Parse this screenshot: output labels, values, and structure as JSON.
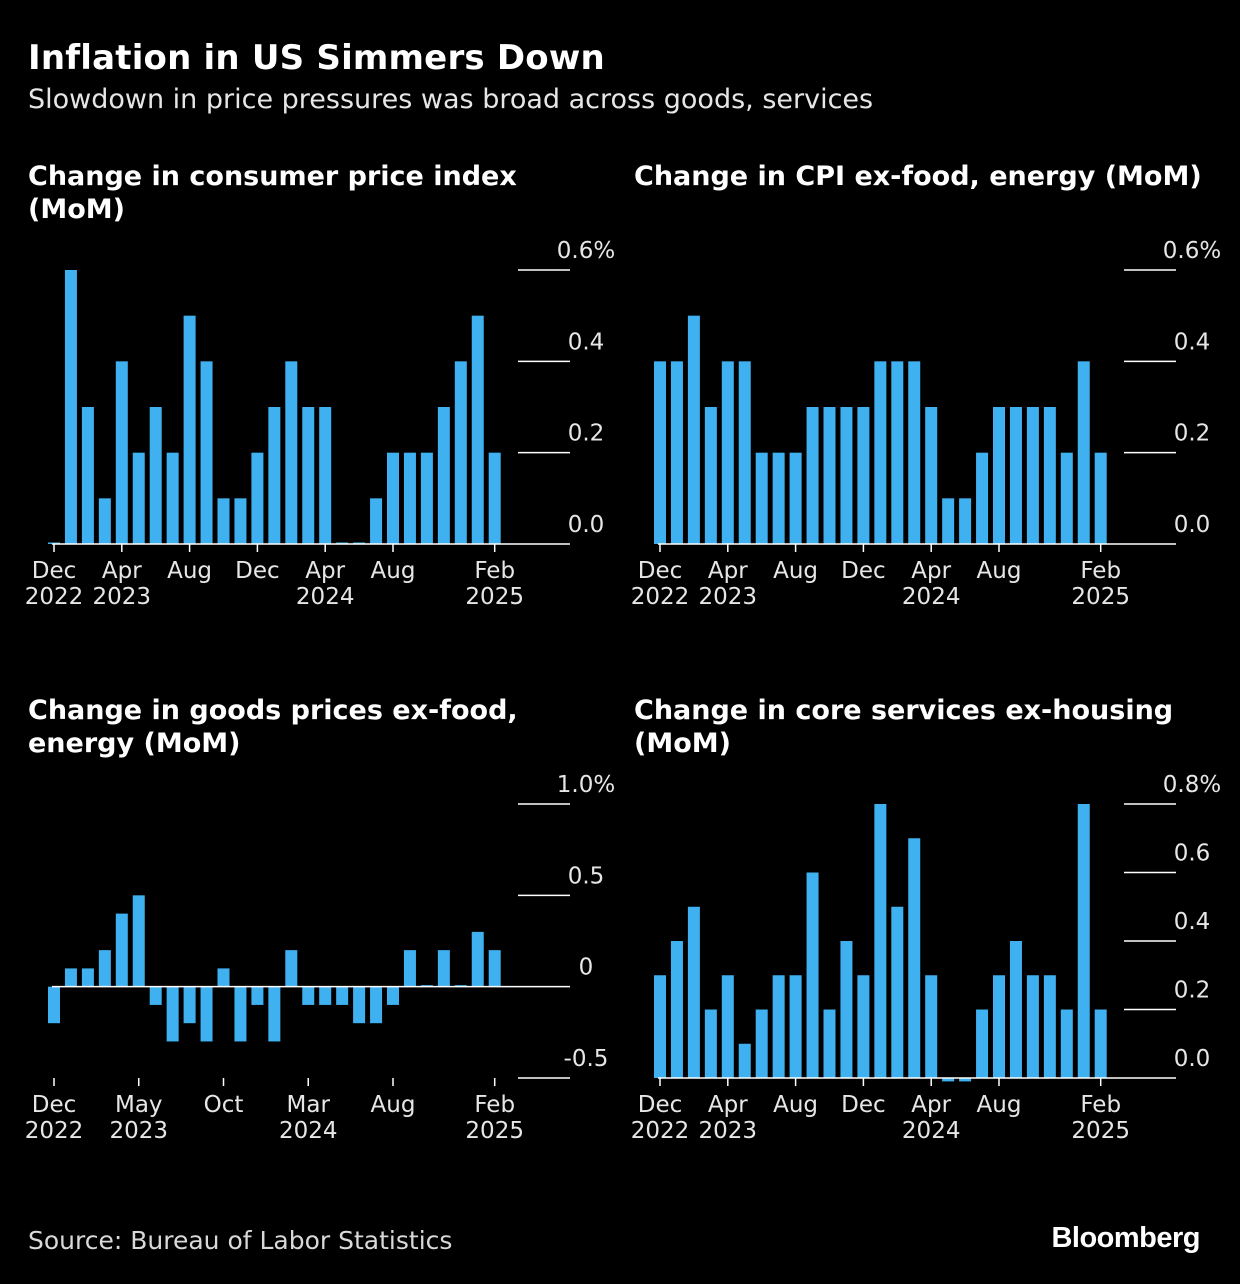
{
  "header": {
    "title": "Inflation in US Simmers Down",
    "subtitle": "Slowdown in price pressures was broad across goods, services"
  },
  "footer": {
    "source": "Source: Bureau of Labor Statistics",
    "logo": "Bloomberg"
  },
  "colors": {
    "bar": "#3fb0f0",
    "background": "#000000",
    "axis": "#ffffff",
    "text": "#ffffff"
  },
  "chart_data": [
    {
      "type": "bar",
      "title": "Change in consumer price index (MoM)",
      "x": [
        "2022-12",
        "2023-01",
        "2023-02",
        "2023-03",
        "2023-04",
        "2023-05",
        "2023-06",
        "2023-07",
        "2023-08",
        "2023-09",
        "2023-10",
        "2023-11",
        "2023-12",
        "2024-01",
        "2024-02",
        "2024-03",
        "2024-04",
        "2024-05",
        "2024-06",
        "2024-07",
        "2024-08",
        "2024-09",
        "2024-10",
        "2024-11",
        "2024-12",
        "2025-01",
        "2025-02"
      ],
      "values": [
        0.0,
        0.6,
        0.3,
        0.1,
        0.4,
        0.2,
        0.3,
        0.2,
        0.5,
        0.4,
        0.1,
        0.1,
        0.2,
        0.3,
        0.4,
        0.3,
        0.3,
        0.0,
        0.0,
        0.1,
        0.2,
        0.2,
        0.2,
        0.3,
        0.4,
        0.5,
        0.2
      ],
      "ylim": [
        0,
        0.6
      ],
      "yticks": [
        {
          "v": 0.6,
          "label": "0.6%"
        },
        {
          "v": 0.4,
          "label": "0.4"
        },
        {
          "v": 0.2,
          "label": "0.2"
        },
        {
          "v": 0.0,
          "label": "0.0"
        }
      ],
      "xticks": [
        {
          "i": 0,
          "l1": "Dec",
          "l2": "2022"
        },
        {
          "i": 4,
          "l1": "Apr",
          "l2": "2023"
        },
        {
          "i": 8,
          "l1": "Aug",
          "l2": ""
        },
        {
          "i": 12,
          "l1": "Dec",
          "l2": ""
        },
        {
          "i": 16,
          "l1": "Apr",
          "l2": "2024"
        },
        {
          "i": 20,
          "l1": "Aug",
          "l2": ""
        },
        {
          "i": 26,
          "l1": "Feb",
          "l2": "2025"
        }
      ],
      "grid": true,
      "legend": "none"
    },
    {
      "type": "bar",
      "title": "Change in CPI ex-food, energy (MoM)",
      "x": [
        "2022-12",
        "2023-01",
        "2023-02",
        "2023-03",
        "2023-04",
        "2023-05",
        "2023-06",
        "2023-07",
        "2023-08",
        "2023-09",
        "2023-10",
        "2023-11",
        "2023-12",
        "2024-01",
        "2024-02",
        "2024-03",
        "2024-04",
        "2024-05",
        "2024-06",
        "2024-07",
        "2024-08",
        "2024-09",
        "2024-10",
        "2024-11",
        "2024-12",
        "2025-01",
        "2025-02"
      ],
      "values": [
        0.4,
        0.4,
        0.5,
        0.3,
        0.4,
        0.4,
        0.2,
        0.2,
        0.2,
        0.3,
        0.3,
        0.3,
        0.3,
        0.4,
        0.4,
        0.4,
        0.3,
        0.1,
        0.1,
        0.2,
        0.3,
        0.3,
        0.3,
        0.3,
        0.2,
        0.4,
        0.2
      ],
      "ylim": [
        0,
        0.6
      ],
      "yticks": [
        {
          "v": 0.6,
          "label": "0.6%"
        },
        {
          "v": 0.4,
          "label": "0.4"
        },
        {
          "v": 0.2,
          "label": "0.2"
        },
        {
          "v": 0.0,
          "label": "0.0"
        }
      ],
      "xticks": [
        {
          "i": 0,
          "l1": "Dec",
          "l2": "2022"
        },
        {
          "i": 4,
          "l1": "Apr",
          "l2": "2023"
        },
        {
          "i": 8,
          "l1": "Aug",
          "l2": ""
        },
        {
          "i": 12,
          "l1": "Dec",
          "l2": ""
        },
        {
          "i": 16,
          "l1": "Apr",
          "l2": "2024"
        },
        {
          "i": 20,
          "l1": "Aug",
          "l2": ""
        },
        {
          "i": 26,
          "l1": "Feb",
          "l2": "2025"
        }
      ],
      "grid": true,
      "legend": "none"
    },
    {
      "type": "bar",
      "title": "Change in goods prices ex-food, energy (MoM)",
      "x": [
        "2022-12",
        "2023-01",
        "2023-02",
        "2023-03",
        "2023-04",
        "2023-05",
        "2023-06",
        "2023-07",
        "2023-08",
        "2023-09",
        "2023-10",
        "2023-11",
        "2023-12",
        "2024-01",
        "2024-02",
        "2024-03",
        "2024-04",
        "2024-05",
        "2024-06",
        "2024-07",
        "2024-08",
        "2024-09",
        "2024-10",
        "2024-11",
        "2024-12",
        "2025-01",
        "2025-02"
      ],
      "values": [
        -0.2,
        0.1,
        0.1,
        0.2,
        0.4,
        0.5,
        -0.1,
        -0.3,
        -0.2,
        -0.3,
        0.1,
        -0.3,
        -0.1,
        -0.3,
        0.2,
        -0.1,
        -0.1,
        -0.1,
        -0.2,
        -0.2,
        -0.1,
        0.2,
        0.0,
        0.2,
        0.0,
        0.3,
        0.2
      ],
      "ylim": [
        -0.5,
        1.0
      ],
      "yticks": [
        {
          "v": 1.0,
          "label": "1.0%"
        },
        {
          "v": 0.5,
          "label": "0.5"
        },
        {
          "v": 0.0,
          "label": "0"
        },
        {
          "v": -0.5,
          "label": "-0.5"
        }
      ],
      "xticks": [
        {
          "i": 0,
          "l1": "Dec",
          "l2": "2022"
        },
        {
          "i": 5,
          "l1": "May",
          "l2": "2023"
        },
        {
          "i": 10,
          "l1": "Oct",
          "l2": ""
        },
        {
          "i": 15,
          "l1": "Mar",
          "l2": "2024"
        },
        {
          "i": 20,
          "l1": "Aug",
          "l2": ""
        },
        {
          "i": 26,
          "l1": "Feb",
          "l2": "2025"
        }
      ],
      "grid": true,
      "legend": "none"
    },
    {
      "type": "bar",
      "title": "Change in core services ex-housing (MoM)",
      "x": [
        "2022-12",
        "2023-01",
        "2023-02",
        "2023-03",
        "2023-04",
        "2023-05",
        "2023-06",
        "2023-07",
        "2023-08",
        "2023-09",
        "2023-10",
        "2023-11",
        "2023-12",
        "2024-01",
        "2024-02",
        "2024-03",
        "2024-04",
        "2024-05",
        "2024-06",
        "2024-07",
        "2024-08",
        "2024-09",
        "2024-10",
        "2024-11",
        "2024-12",
        "2025-01",
        "2025-02"
      ],
      "values": [
        0.3,
        0.4,
        0.5,
        0.2,
        0.3,
        0.1,
        0.2,
        0.3,
        0.3,
        0.6,
        0.2,
        0.4,
        0.3,
        0.8,
        0.5,
        0.7,
        0.3,
        -0.01,
        -0.01,
        0.2,
        0.3,
        0.4,
        0.3,
        0.3,
        0.2,
        0.8,
        0.2
      ],
      "ylim": [
        0,
        0.8
      ],
      "yticks": [
        {
          "v": 0.8,
          "label": "0.8%"
        },
        {
          "v": 0.6,
          "label": "0.6"
        },
        {
          "v": 0.4,
          "label": "0.4"
        },
        {
          "v": 0.2,
          "label": "0.2"
        },
        {
          "v": 0.0,
          "label": "0.0"
        }
      ],
      "xticks": [
        {
          "i": 0,
          "l1": "Dec",
          "l2": "2022"
        },
        {
          "i": 4,
          "l1": "Apr",
          "l2": "2023"
        },
        {
          "i": 8,
          "l1": "Aug",
          "l2": ""
        },
        {
          "i": 12,
          "l1": "Dec",
          "l2": ""
        },
        {
          "i": 16,
          "l1": "Apr",
          "l2": "2024"
        },
        {
          "i": 20,
          "l1": "Aug",
          "l2": ""
        },
        {
          "i": 26,
          "l1": "Feb",
          "l2": "2025"
        }
      ],
      "grid": true,
      "legend": "none"
    }
  ]
}
